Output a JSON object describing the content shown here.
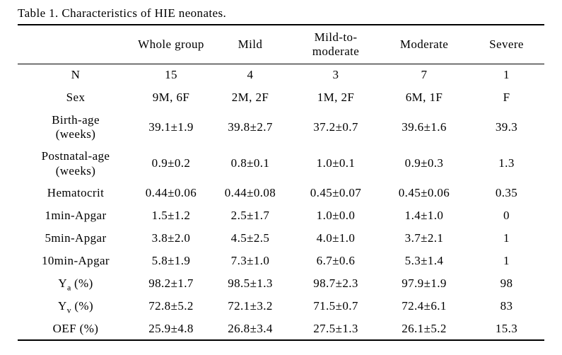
{
  "page": {
    "title": "Table 1. Characteristics of HIE neonates."
  },
  "colors": {
    "background": "#ffffff",
    "text": "#000000",
    "rule": "#000000"
  },
  "table": {
    "columns": [
      "",
      "Whole group",
      "Mild",
      "Mild-to-\nmoderate",
      "Moderate",
      "Severe"
    ],
    "rows": [
      {
        "label": [
          {
            "text": "N"
          }
        ],
        "values": [
          "15",
          "4",
          "3",
          "7",
          "1"
        ]
      },
      {
        "label": [
          {
            "text": "Sex"
          }
        ],
        "values": [
          "9M, 6F",
          "2M, 2F",
          "1M, 2F",
          "6M, 1F",
          "F"
        ]
      },
      {
        "label": [
          {
            "text": "Birth-age\n(weeks)"
          }
        ],
        "values": [
          "39.1±1.9",
          "39.8±2.7",
          "37.2±0.7",
          "39.6±1.6",
          "39.3"
        ]
      },
      {
        "label": [
          {
            "text": "Postnatal-age\n(weeks)"
          }
        ],
        "values": [
          "0.9±0.2",
          "0.8±0.1",
          "1.0±0.1",
          "0.9±0.3",
          "1.3"
        ]
      },
      {
        "label": [
          {
            "text": "Hematocrit"
          }
        ],
        "values": [
          "0.44±0.06",
          "0.44±0.08",
          "0.45±0.07",
          "0.45±0.06",
          "0.35"
        ]
      },
      {
        "label": [
          {
            "text": "1min-Apgar"
          }
        ],
        "values": [
          "1.5±1.2",
          "2.5±1.7",
          "1.0±0.0",
          "1.4±1.0",
          "0"
        ]
      },
      {
        "label": [
          {
            "text": "5min-Apgar"
          }
        ],
        "values": [
          "3.8±2.0",
          "4.5±2.5",
          "4.0±1.0",
          "3.7±2.1",
          "1"
        ]
      },
      {
        "label": [
          {
            "text": "10min-Apgar"
          }
        ],
        "values": [
          "5.8±1.9",
          "7.3±1.0",
          "6.7±0.6",
          "5.3±1.4",
          "1"
        ]
      },
      {
        "label": [
          {
            "text": "Y"
          },
          {
            "text": "a",
            "sub": true
          },
          {
            "text": " (%)"
          }
        ],
        "values": [
          "98.2±1.7",
          "98.5±1.3",
          "98.7±2.3",
          "97.9±1.9",
          "98"
        ]
      },
      {
        "label": [
          {
            "text": "Y"
          },
          {
            "text": "v",
            "sub": true
          },
          {
            "text": " (%)"
          }
        ],
        "values": [
          "72.8±5.2",
          "72.1±3.2",
          "71.5±0.7",
          "72.4±6.1",
          "83"
        ]
      },
      {
        "label": [
          {
            "text": "OEF (%)"
          }
        ],
        "values": [
          "25.9±4.8",
          "26.8±3.4",
          "27.5±1.3",
          "26.1±5.2",
          "15.3"
        ]
      }
    ]
  }
}
